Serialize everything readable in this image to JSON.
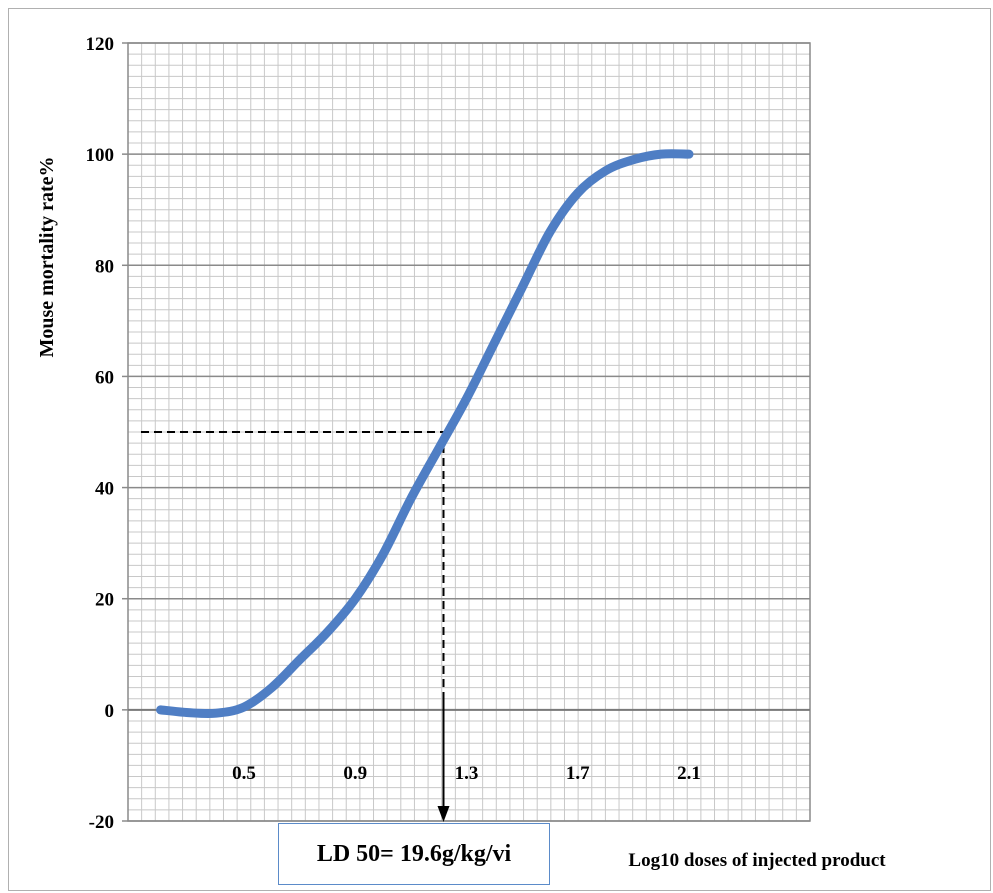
{
  "chart_data": {
    "type": "line",
    "ylabel": "Mouse mortality rate%",
    "xlabel": "Log10 doses of injected product",
    "ylim": [
      -20,
      120
    ],
    "y_ticks": [
      "-20",
      "0",
      "20",
      "40",
      "60",
      "80",
      "100",
      "120"
    ],
    "x_tick_labels": [
      "0.5",
      "0.9",
      "1.3",
      "1.7",
      "2.1"
    ],
    "grid": true,
    "series": [
      {
        "color": "#4f7ec4",
        "x": [
          0.2,
          0.3,
          0.4,
          0.5,
          0.6,
          0.7,
          0.8,
          0.9,
          1.0,
          1.1,
          1.2,
          1.3,
          1.4,
          1.5,
          1.6,
          1.7,
          1.8,
          1.9,
          2.0,
          2.1
        ],
        "y": [
          0,
          -0.5,
          -0.6,
          0.5,
          4,
          9,
          14,
          20,
          28,
          38,
          47,
          56,
          66,
          76,
          86,
          93,
          97,
          99,
          100,
          100
        ]
      }
    ],
    "ld50": {
      "x": 1.3,
      "y": 50
    },
    "annotation": "LD 50= 19.6g/kg/vi"
  }
}
